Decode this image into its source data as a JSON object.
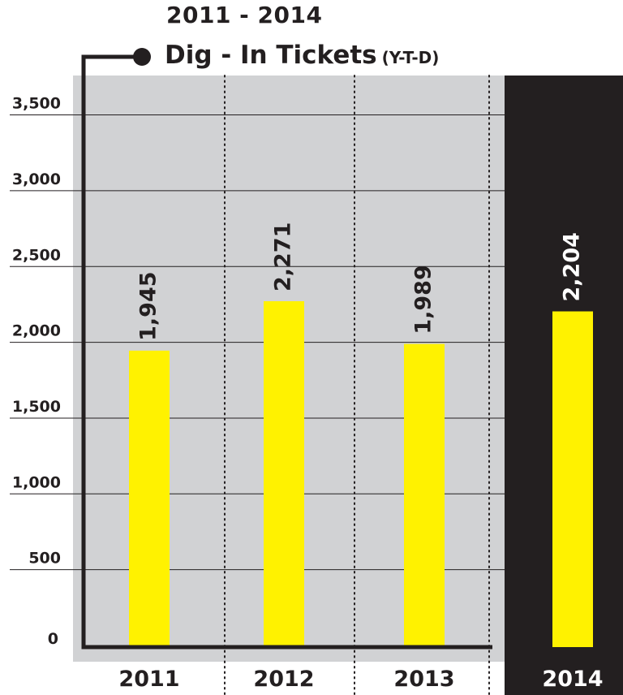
{
  "header": {
    "years": "2011 - 2014",
    "title": "Dig - In Tickets",
    "subtitle": "(Y-T-D)"
  },
  "colors": {
    "panel_background": "#d1d2d4",
    "highlight_background": "#231f20",
    "bar": "#fff200",
    "text_dark": "#231f20",
    "text_light": "#ffffff"
  },
  "chart_data": {
    "type": "bar",
    "title": "2011 - 2014 Dig - In Tickets (Y-T-D)",
    "categories": [
      "2011",
      "2012",
      "2013",
      "2014"
    ],
    "values": [
      1945,
      2271,
      1989,
      2204
    ],
    "value_labels": [
      "1,945",
      "2,271",
      "1,989",
      "2,204"
    ],
    "highlighted_category": "2014",
    "ylim": [
      0,
      3750
    ],
    "yticks": [
      0,
      500,
      1000,
      1500,
      2000,
      2500,
      3000,
      3500
    ],
    "ytick_labels": [
      "0",
      "500",
      "1,000",
      "1,500",
      "2,000",
      "2,500",
      "3,000",
      "3,500"
    ],
    "xlabel": "",
    "ylabel": "",
    "grid": "horizontal",
    "legend": "none"
  }
}
